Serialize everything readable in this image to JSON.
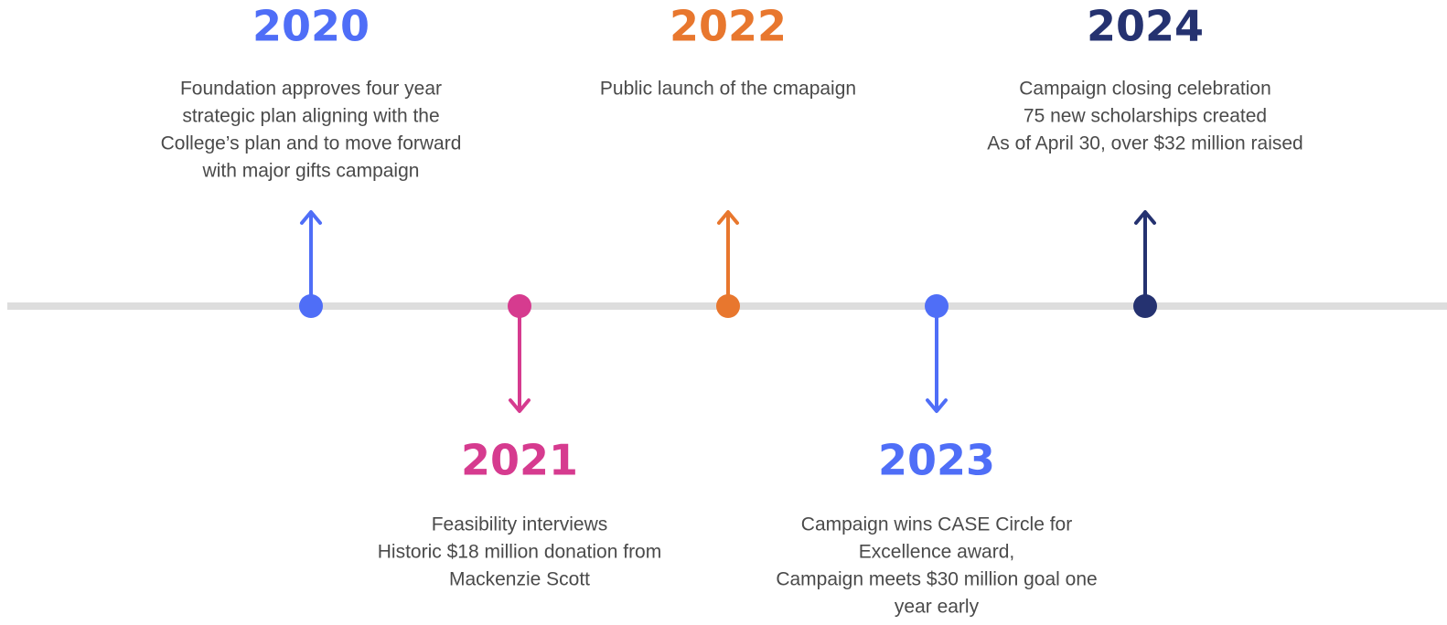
{
  "events": [
    {
      "year": "2020",
      "color": "#4f6ef7",
      "description": [
        "Foundation approves four year",
        "strategic plan aligning with the",
        "College’s plan and to move forward",
        "with major gifts campaign"
      ]
    },
    {
      "year": "2021",
      "color": "#d63b8f",
      "description": [
        "Feasibility interviews",
        "Historic $18 million donation from",
        "Mackenzie Scott"
      ]
    },
    {
      "year": "2022",
      "color": "#e8772e",
      "description": [
        "Public launch of the cmapaign"
      ]
    },
    {
      "year": "2023",
      "color": "#4f6ef7",
      "description": [
        "Campaign wins CASE Circle for",
        "Excellence award,",
        "Campaign meets $30 million goal one",
        "year early"
      ]
    },
    {
      "year": "2024",
      "color": "#253270",
      "description": [
        "Campaign closing celebration",
        "75 new scholarships created",
        "As of April 30, over $32 million raised"
      ]
    }
  ]
}
